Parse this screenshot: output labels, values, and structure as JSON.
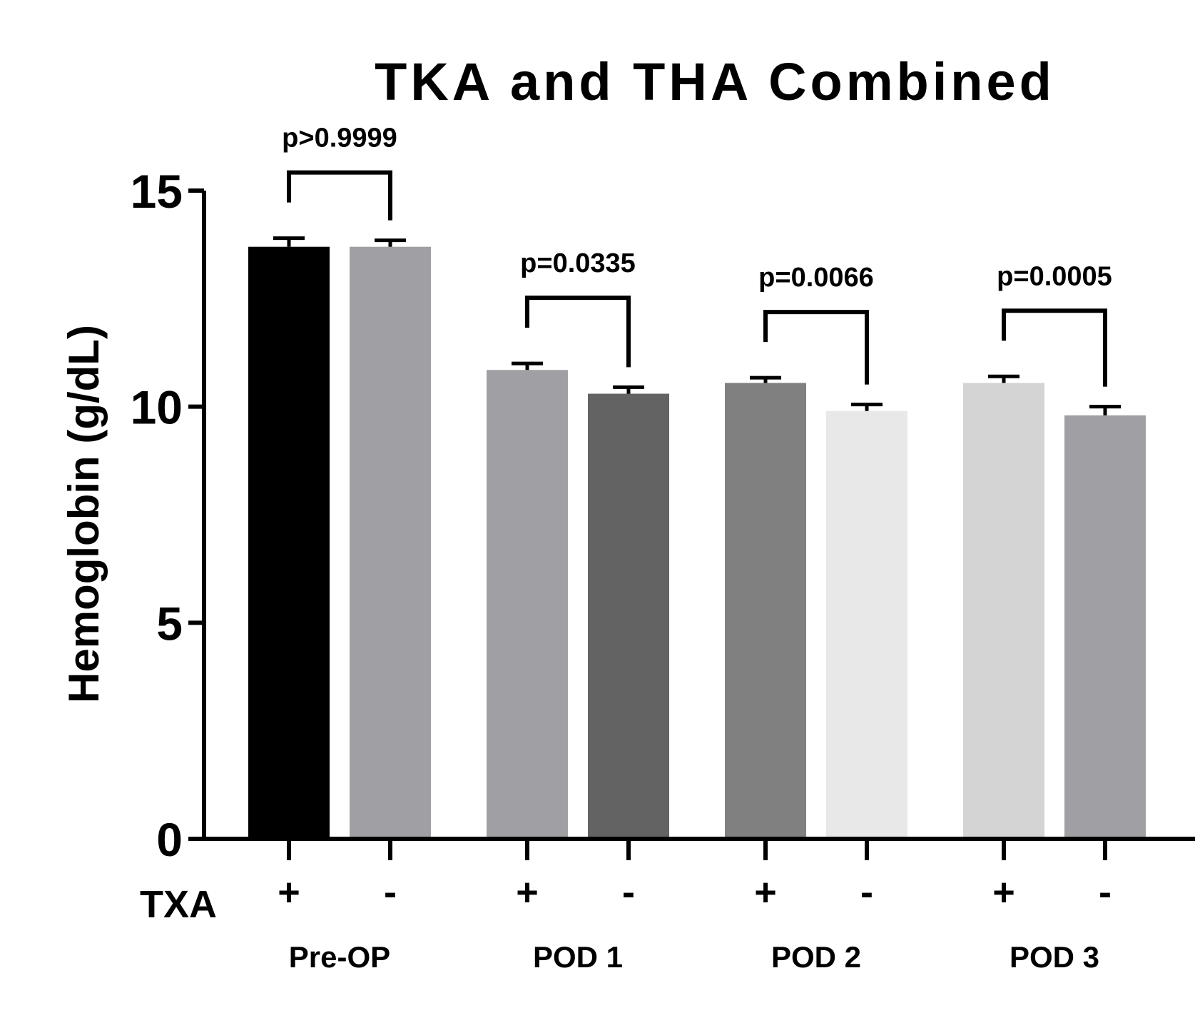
{
  "chart_data": {
    "type": "bar",
    "title": "TKA and THA Combined",
    "ylabel": "Hemoglobin (g/dL)",
    "xlabel": "",
    "ylim": [
      0,
      15
    ],
    "yticks": [
      0,
      5,
      10,
      15
    ],
    "row_label": "TXA",
    "groups": [
      {
        "name": "Pre-OP",
        "p_value": "p>0.9999",
        "bars": [
          {
            "txa": "+",
            "value": 13.7,
            "error": 0.2,
            "color": "#000000"
          },
          {
            "txa": "-",
            "value": 13.7,
            "error": 0.15,
            "color": "#a0a0a4"
          }
        ]
      },
      {
        "name": "POD 1",
        "p_value": "p=0.0335",
        "bars": [
          {
            "txa": "+",
            "value": 10.85,
            "error": 0.15,
            "color": "#a0a0a4"
          },
          {
            "txa": "-",
            "value": 10.3,
            "error": 0.15,
            "color": "#636363"
          }
        ]
      },
      {
        "name": "POD 2",
        "p_value": "p=0.0066",
        "bars": [
          {
            "txa": "+",
            "value": 10.55,
            "error": 0.12,
            "color": "#808080"
          },
          {
            "txa": "-",
            "value": 9.9,
            "error": 0.15,
            "color": "#e8e8e8"
          }
        ]
      },
      {
        "name": "POD 3",
        "p_value": "p=0.0005",
        "bars": [
          {
            "txa": "+",
            "value": 10.55,
            "error": 0.15,
            "color": "#d4d4d4"
          },
          {
            "txa": "-",
            "value": 9.8,
            "error": 0.2,
            "color": "#a0a0a4"
          }
        ]
      }
    ]
  }
}
